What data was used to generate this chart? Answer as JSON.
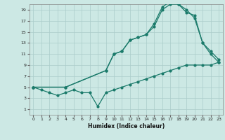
{
  "title": "",
  "xlabel": "Humidex (Indice chaleur)",
  "background_color": "#cce8e4",
  "grid_color": "#aaccca",
  "line_color": "#1a7a6a",
  "xlim": [
    -0.5,
    23.5
  ],
  "ylim": [
    0,
    20
  ],
  "xticks": [
    0,
    1,
    2,
    3,
    4,
    5,
    6,
    7,
    8,
    9,
    10,
    11,
    12,
    13,
    14,
    15,
    16,
    17,
    18,
    19,
    20,
    21,
    22,
    23
  ],
  "yticks": [
    1,
    3,
    5,
    7,
    9,
    11,
    13,
    15,
    17,
    19
  ],
  "line1_x": [
    0,
    1,
    2,
    3,
    4,
    5,
    6,
    7,
    8,
    9,
    10,
    11,
    12,
    13,
    14,
    15,
    16,
    17,
    18,
    19,
    20,
    21,
    22,
    23
  ],
  "line1_y": [
    5,
    4.5,
    4,
    3.5,
    4,
    4.5,
    4,
    4,
    1.5,
    4,
    4.5,
    5,
    5.5,
    6,
    6.5,
    7,
    7.5,
    8,
    8.5,
    9,
    9,
    9,
    9,
    9.5
  ],
  "line2_x": [
    0,
    4,
    9,
    10,
    11,
    12,
    13,
    14,
    15,
    16,
    17,
    18,
    19,
    20,
    21,
    22,
    23
  ],
  "line2_y": [
    5,
    5,
    8,
    11,
    11.5,
    13.5,
    14,
    14.5,
    16,
    19,
    20,
    20,
    19,
    17.5,
    13,
    11.5,
    10
  ],
  "line3_x": [
    0,
    4,
    9,
    10,
    11,
    12,
    13,
    14,
    15,
    16,
    17,
    18,
    19,
    20,
    21,
    22,
    23
  ],
  "line3_y": [
    5,
    5,
    8,
    11,
    11.5,
    13.5,
    14,
    14.5,
    16.5,
    19.5,
    20.5,
    20,
    18.5,
    18,
    13,
    11,
    9.5
  ]
}
